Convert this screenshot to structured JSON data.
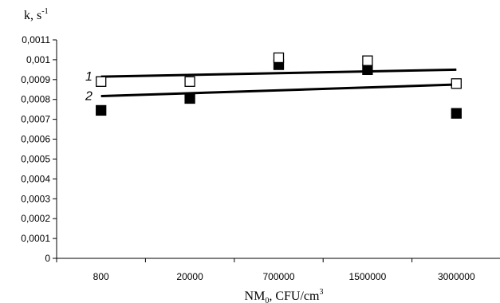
{
  "chart_data": {
    "type": "scatter",
    "categories": [
      "800",
      "20000",
      "700000",
      "1500000",
      "3000000"
    ],
    "xlabel": {
      "main": "NM",
      "sub": "0",
      "mid": ", CFU/cm",
      "sup": "3"
    },
    "ylabel": {
      "main": "k, s",
      "sup": "-1"
    },
    "ylim": [
      0,
      0.0011
    ],
    "yticks": [
      "0",
      "0,0001",
      "0,0002",
      "0,0003",
      "0,0004",
      "0,0005",
      "0,0006",
      "0,0007",
      "0,0008",
      "0,0009",
      "0,001",
      "0,0011"
    ],
    "grid": false,
    "legend": "none",
    "series": [
      {
        "label": "1",
        "marker": "open-square",
        "values": [
          0.00089,
          0.00089,
          0.00101,
          0.000995,
          0.00088
        ],
        "trend": [
          0.000915,
          0.00095
        ]
      },
      {
        "label": "2",
        "marker": "filled-square",
        "values": [
          0.000745,
          0.000805,
          0.000975,
          0.00095,
          0.00073
        ],
        "trend": [
          0.000817,
          0.000875
        ]
      }
    ]
  }
}
